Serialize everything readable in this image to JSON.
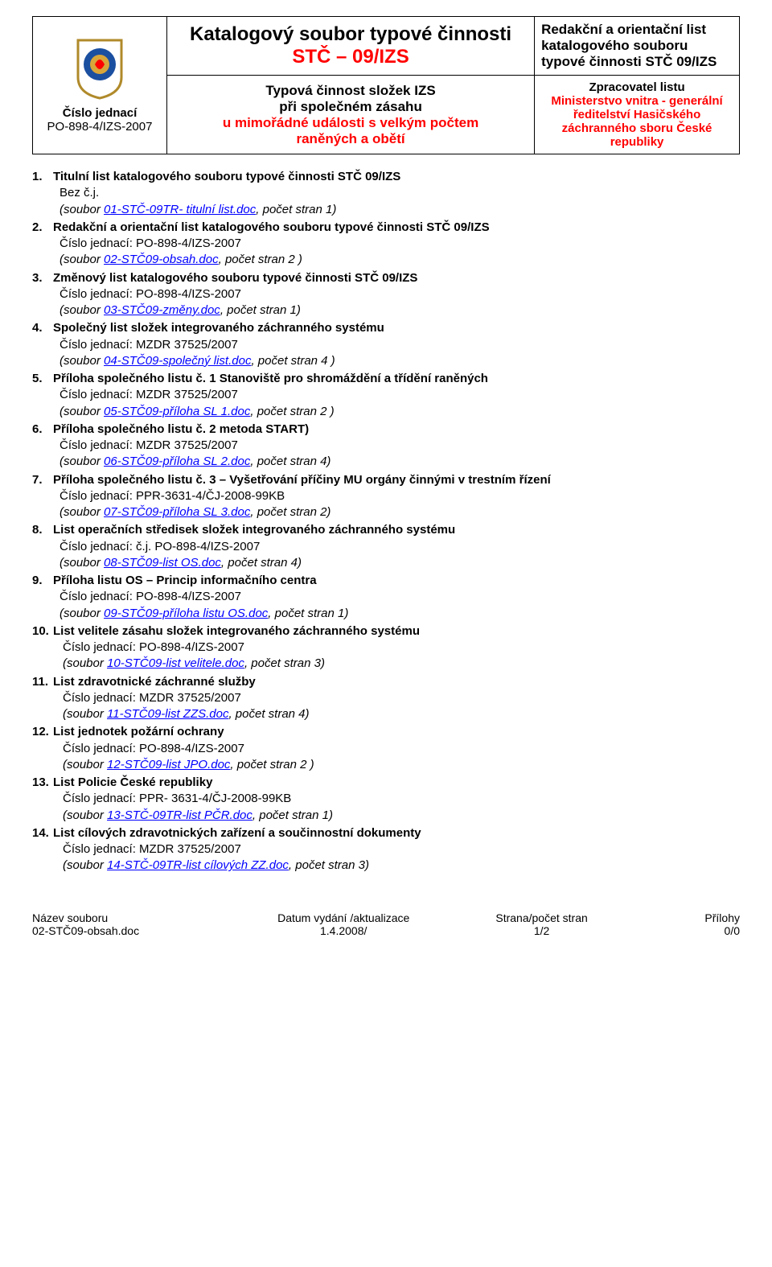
{
  "header": {
    "left": {
      "cj_label": "Číslo jednací",
      "cj_value": "PO-898-4/IZS-2007"
    },
    "center": {
      "title_main": "Katalogový soubor typové činnosti",
      "title_code": "STČ – 09/IZS",
      "sub1a": "Typová činnost složek IZS",
      "sub1b": "při společném zásahu",
      "sub2a": "u mimořádné události s velkým počtem",
      "sub2b": "raněných a obětí"
    },
    "right": {
      "title": "Redakční a orientační list katalogového souboru typové činnosti STČ 09/IZS",
      "processor_label": "Zpracovatel listu",
      "processor_body": "Ministerstvo vnitra - generální ředitelství Hasičského záchranného sboru České republiky"
    },
    "emblem_colors": {
      "shield_fill": "#ffffff",
      "shield_stroke": "#b08a2a",
      "badge_fill": "#1b4fa0",
      "inner_fill": "#d9a63a"
    }
  },
  "items": [
    {
      "num": "1.",
      "title": "Titulní list katalogového souboru typové činnosti STČ 09/IZS",
      "cj": "Bez č.j.",
      "file_pre": "(soubor ",
      "file_link": "01-STČ-09TR- titulní list.doc",
      "file_post": ", počet stran 1)"
    },
    {
      "num": "2.",
      "title": "Redakční a orientační list katalogového souboru typové činnosti STČ 09/IZS",
      "cj": "Číslo jednací: PO-898-4/IZS-2007",
      "file_pre": "(soubor ",
      "file_link": "02-STČ09-obsah.doc",
      "file_post": ", počet stran 2 )"
    },
    {
      "num": "3.",
      "title": "Změnový list katalogového souboru typové činnosti STČ 09/IZS",
      "cj": "Číslo jednací: PO-898-4/IZS-2007",
      "file_pre": "(soubor ",
      "file_link": "03-STČ09-změny.doc",
      "file_post": ", počet stran 1)"
    },
    {
      "num": "4.",
      "title": "Společný list složek integrovaného záchranného systému",
      "cj": "Číslo jednací: MZDR 37525/2007",
      "file_pre": "(soubor ",
      "file_link": "04-STČ09-společný list.doc",
      "file_post": ", počet stran 4 )"
    },
    {
      "num": "5.",
      "title": "Příloha společného listu č. 1 Stanoviště pro shromáždění a třídění raněných",
      "cj": "Číslo jednací: MZDR 37525/2007",
      "file_pre": "(soubor ",
      "file_link": "05-STČ09-příloha SL 1.doc",
      "file_post": ", počet stran 2 )"
    },
    {
      "num": "6.",
      "title": "Příloha společného listu č. 2 metoda START)",
      "cj": "Číslo jednací: MZDR 37525/2007",
      "file_pre": "(soubor ",
      "file_link": "06-STČ09-příloha SL 2.doc",
      "file_post": ", počet stran 4)"
    },
    {
      "num": "7.",
      "title": "Příloha společného listu č. 3 – Vyšetřování příčiny MU orgány činnými v trestním řízení",
      "cj": "Číslo jednací: PPR-3631-4/ČJ-2008-99KB",
      "file_pre": "(soubor ",
      "file_link": "07-STČ09-příloha SL 3.doc",
      "file_post": ", počet stran 2)"
    },
    {
      "num": "8.",
      "title": "List operačních středisek složek integrovaného záchranného systému",
      "cj": "Číslo jednací: č.j. PO-898-4/IZS-2007",
      "file_pre": "(soubor ",
      "file_link": "08-STČ09-list OS.doc",
      "file_post": ", počet stran 4)"
    },
    {
      "num": "9.",
      "title": "Příloha listu OS – Princip informačního centra",
      "cj": "Číslo jednací: PO-898-4/IZS-2007",
      "file_pre": "(soubor ",
      "file_link": "09-STČ09-příloha listu OS.doc",
      "file_post": ", počet stran 1)"
    },
    {
      "num": "10.",
      "title": "List velitele zásahu složek integrovaného záchranného systému",
      "cj": "Číslo jednací: PO-898-4/IZS-2007",
      "file_pre": "(soubor ",
      "file_link": "10-STČ09-list velitele.doc",
      "file_post": ", počet stran 3)",
      "indent2": true
    },
    {
      "num": "11.",
      "title": "List zdravotnické záchranné služby",
      "cj": "Číslo jednací: MZDR 37525/2007",
      "file_pre": "(soubor ",
      "file_link": "11-STČ09-list ZZS.doc",
      "file_post": ", počet stran 4)",
      "indent2": true
    },
    {
      "num": "12.",
      "title": "List jednotek požární ochrany",
      "cj": "Číslo jednací:  PO-898-4/IZS-2007",
      "file_pre": "(soubor ",
      "file_link": "12-STČ09-list JPO.doc",
      "file_post": ", počet stran 2 )",
      "indent2": true
    },
    {
      "num": "13.",
      "title": "List Policie České republiky",
      "cj": "Číslo jednací: PPR- 3631-4/ČJ-2008-99KB",
      "file_pre": "(soubor ",
      "file_link": "13-STČ-09TR-list PČR.doc",
      "file_post": ", počet stran 1)",
      "indent2": true
    },
    {
      "num": "14.",
      "title": "List cílových zdravotnických zařízení a součinnostní dokumenty",
      "cj": "Číslo jednací: MZDR 37525/2007",
      "file_pre": "(soubor ",
      "file_link": "14-STČ-09TR-list cílových ZZ.doc",
      "file_post": ", počet stran 3)",
      "indent2": true
    }
  ],
  "footer": {
    "col1_h": "Název souboru",
    "col1_v": "02-STČ09-obsah.doc",
    "col2_h": "Datum vydání /aktualizace",
    "col2_v": "1.4.2008/",
    "col3_h": "Strana/počet stran",
    "col3_v": "1/2",
    "col4_h": "Přílohy",
    "col4_v": "0/0"
  }
}
